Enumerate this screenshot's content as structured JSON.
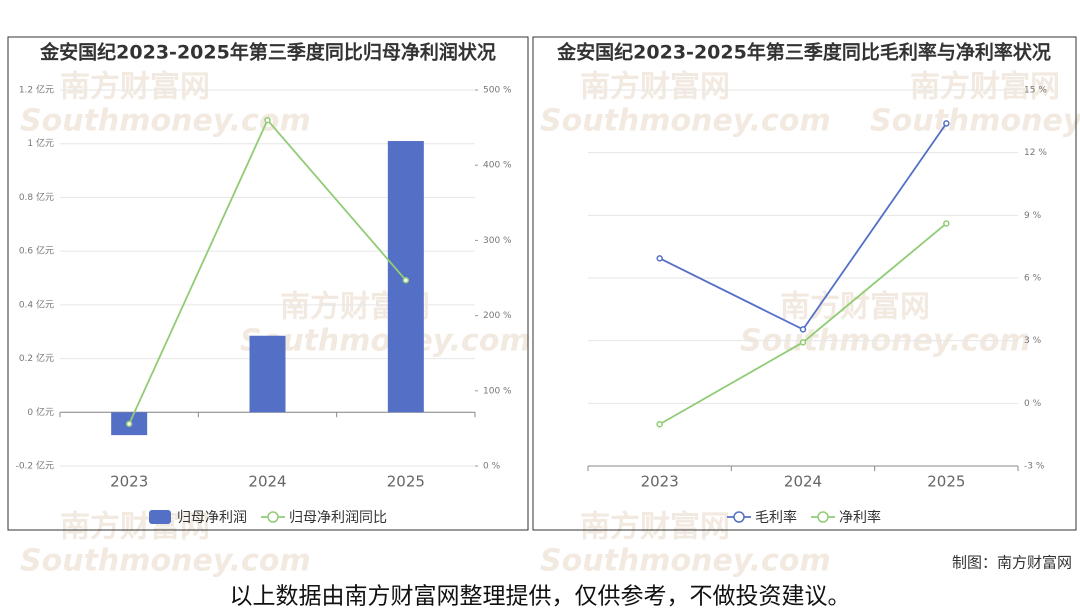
{
  "chart_data": [
    {
      "type": "combo",
      "title": "金安国纪2023-2025年第三季度同比归母净利润状况",
      "categories": [
        "2023",
        "2024",
        "2025"
      ],
      "series": [
        {
          "name": "归母净利润",
          "type": "bar",
          "color": "#5470c6",
          "values": [
            -0.085,
            0.285,
            1.01
          ]
        },
        {
          "name": "归母净利润同比",
          "type": "line",
          "axis": "y2",
          "color": "#91cc75",
          "values": [
            56,
            460,
            247
          ]
        }
      ],
      "ylim": [
        -0.2,
        1.2
      ],
      "yticks": [
        {
          "value": -0.2,
          "label": "-0.2 亿元"
        },
        {
          "value": 0,
          "label": "0 亿元"
        },
        {
          "value": 0.2,
          "label": "0.2 亿元"
        },
        {
          "value": 0.4,
          "label": "0.4 亿元"
        },
        {
          "value": 0.6,
          "label": "0.6 亿元"
        },
        {
          "value": 0.8,
          "label": "0.8 亿元"
        },
        {
          "value": 1,
          "label": "1 亿元"
        },
        {
          "value": 1.2,
          "label": "1.2 亿元"
        }
      ],
      "y2lim": [
        0,
        500
      ],
      "y2ticks": [
        {
          "value": 0,
          "label": "0 %"
        },
        {
          "value": 100,
          "label": "100 %"
        },
        {
          "value": 200,
          "label": "200 %"
        },
        {
          "value": 300,
          "label": "300 %"
        },
        {
          "value": 400,
          "label": "400 %"
        },
        {
          "value": 500,
          "label": "500 %"
        }
      ],
      "grid": true
    },
    {
      "type": "line",
      "title": "金安国纪2023-2025年第三季度同比毛利率与净利率状况",
      "categories": [
        "2023",
        "2024",
        "2025"
      ],
      "series": [
        {
          "name": "毛利率",
          "color": "#5470c6",
          "values": [
            6.94,
            3.54,
            13.4
          ]
        },
        {
          "name": "净利率",
          "color": "#91cc75",
          "values": [
            -1.0,
            2.92,
            8.61
          ]
        }
      ],
      "ylim": [
        -3,
        15
      ],
      "yticks": [
        {
          "value": -3,
          "label": "-3 %"
        },
        {
          "value": 0,
          "label": "0 %"
        },
        {
          "value": 3,
          "label": "3 %"
        },
        {
          "value": 6,
          "label": "6 %"
        },
        {
          "value": 9,
          "label": "9 %"
        },
        {
          "value": 12,
          "label": "12 %"
        },
        {
          "value": 15,
          "label": "15 %"
        }
      ],
      "grid": true
    }
  ],
  "watermark": {
    "cn": "南方财富网",
    "en": "Southmoney.com"
  },
  "credit": "制图：南方财富网",
  "disclaimer": "以上数据由南方财富网整理提供，仅供参考，不做投资建议。"
}
